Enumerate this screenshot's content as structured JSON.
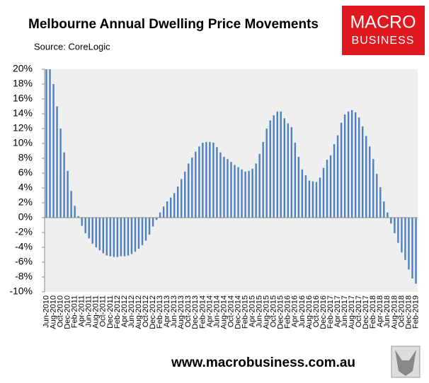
{
  "chart_data": {
    "type": "bar",
    "title": "Melbourne Annual Dwelling Price Movements",
    "subtitle": "Source: CoreLogic",
    "categories": [
      "Jun-2010",
      null,
      "Aug-2010",
      null,
      "Oct-2010",
      null,
      "Dec-2010",
      null,
      "Feb-2011",
      null,
      "Apr-2011",
      null,
      "Jun-2011",
      null,
      "Aug-2011",
      null,
      "Oct-2011",
      null,
      "Dec-2011",
      null,
      "Feb-2012",
      null,
      "Apr-2012",
      null,
      "Jun-2012",
      null,
      "Aug-2012",
      null,
      "Oct-2012",
      null,
      "Dec-2012",
      null,
      "Feb-2013",
      null,
      "Apr-2013",
      null,
      "Jun-2013",
      null,
      "Aug-2013",
      null,
      "Oct-2013",
      null,
      "Dec-2013",
      null,
      "Feb-2014",
      null,
      "Apr-2014",
      null,
      "Jun-2014",
      null,
      "Aug-2014",
      null,
      "Oct-2014",
      null,
      "Dec-2014",
      null,
      "Feb-2015",
      null,
      "Apr-2015",
      null,
      "Jun-2015",
      null,
      "Aug-2015",
      null,
      "Oct-2015",
      null,
      "Dec-2015",
      null,
      "Feb-2016",
      null,
      "Apr-2016",
      null,
      "Jun-2016",
      null,
      "Aug-2016",
      null,
      "Oct-2016",
      null,
      "Dec-2016",
      null,
      "Feb-2017",
      null,
      "Apr-2017",
      null,
      "Jun-2017",
      null,
      "Aug-2017",
      null,
      "Oct-2017",
      null,
      "Dec-2017",
      null,
      "Feb-2018",
      null,
      "Apr-2018",
      null,
      "Jun-2018",
      null,
      "Aug-2018",
      null,
      "Oct-2018",
      null,
      "Dec-2018",
      null,
      "Feb-2019"
    ],
    "values": [
      20,
      20,
      18,
      15,
      12,
      8.8,
      6.3,
      3.6,
      1.6,
      0.2,
      -1.1,
      -2.1,
      -2.8,
      -3.5,
      -4.0,
      -4.4,
      -4.8,
      -5.1,
      -5.2,
      -5.3,
      -5.3,
      -5.2,
      -5.2,
      -5.1,
      -4.9,
      -4.6,
      -4.2,
      -3.7,
      -3.1,
      -2.3,
      -1.2,
      -0.3,
      0.7,
      1.5,
      2.2,
      2.7,
      3.3,
      4.2,
      5.2,
      6.2,
      7.3,
      8.1,
      8.9,
      9.6,
      10.1,
      10.2,
      10.2,
      10.1,
      9.5,
      8.8,
      8.2,
      7.9,
      7.5,
      7.1,
      6.8,
      6.5,
      6.2,
      6.3,
      6.6,
      7.3,
      8.6,
      10.2,
      12.0,
      13.1,
      13.8,
      14.3,
      14.3,
      13.4,
      12.7,
      12.2,
      10.1,
      8.2,
      6.5,
      5.7,
      5.0,
      4.9,
      4.8,
      5.4,
      6.7,
      7.8,
      8.4,
      9.9,
      11.1,
      12.8,
      13.9,
      14.3,
      14.5,
      14.2,
      13.5,
      12.3,
      11.0,
      9.6,
      7.9,
      5.9,
      4.1,
      2.2,
      0.7,
      -0.8,
      -2.1,
      -3.4,
      -4.7,
      -5.7,
      -7.0,
      -8.2,
      -8.9
    ],
    "color": "#4f81bd",
    "ylim": [
      -10,
      20
    ],
    "yticks": [
      {
        "value": -10,
        "label": "-10%"
      },
      {
        "value": -8,
        "label": "-8%"
      },
      {
        "value": -6,
        "label": "-6%"
      },
      {
        "value": -4,
        "label": "-4%"
      },
      {
        "value": -2,
        "label": "-2%"
      },
      {
        "value": 0,
        "label": "0%"
      },
      {
        "value": 2,
        "label": "2%"
      },
      {
        "value": 4,
        "label": "4%"
      },
      {
        "value": 6,
        "label": "6%"
      },
      {
        "value": 8,
        "label": "8%"
      },
      {
        "value": 10,
        "label": "10%"
      },
      {
        "value": 12,
        "label": "12%"
      },
      {
        "value": 14,
        "label": "14%"
      },
      {
        "value": 16,
        "label": "16%"
      },
      {
        "value": 18,
        "label": "18%"
      },
      {
        "value": 20,
        "label": "20%"
      }
    ],
    "grid": false
  },
  "branding": {
    "logo_top": "MACRO",
    "logo_bottom": "BUSINESS",
    "website": "www.macrobusiness.com.au"
  }
}
